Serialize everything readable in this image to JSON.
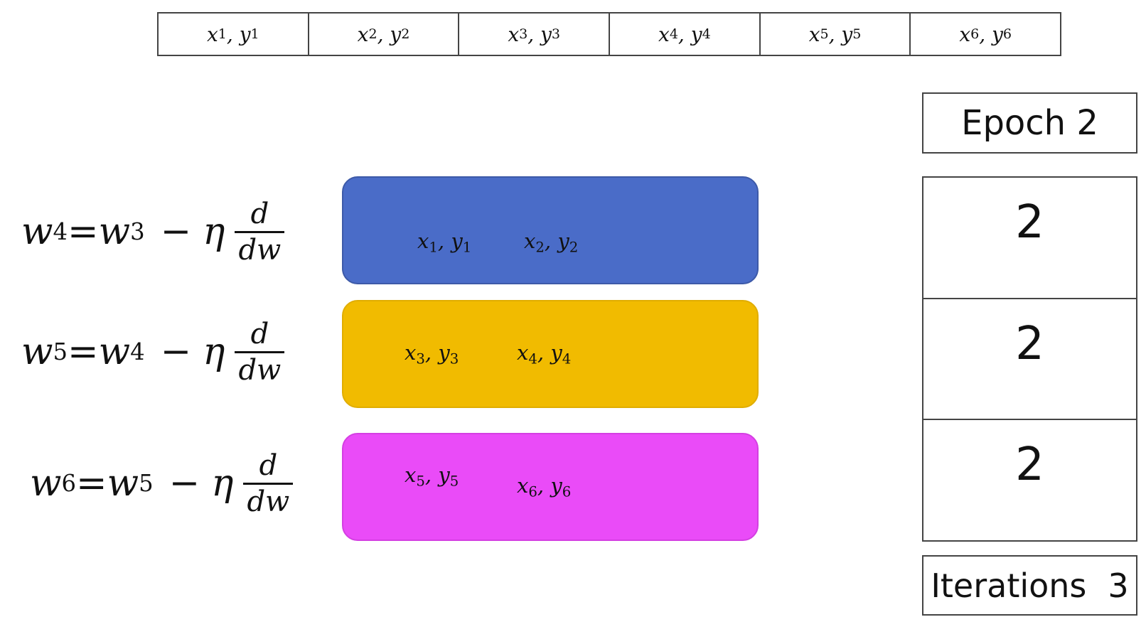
{
  "dataset": [
    {
      "x": "x",
      "y": "y",
      "i": "1"
    },
    {
      "x": "x",
      "y": "y",
      "i": "2"
    },
    {
      "x": "x",
      "y": "y",
      "i": "3"
    },
    {
      "x": "x",
      "y": "y",
      "i": "4"
    },
    {
      "x": "x",
      "y": "y",
      "i": "5"
    },
    {
      "x": "x",
      "y": "y",
      "i": "6"
    }
  ],
  "equations": [
    {
      "lhs_sup": "4",
      "rhs_sup": "3"
    },
    {
      "lhs_sup": "5",
      "rhs_sup": "4"
    },
    {
      "lhs_sup": "6",
      "rhs_sup": "5"
    }
  ],
  "equation_symbols": {
    "w": "w",
    "eq": "=",
    "minus": "−",
    "eta": "η",
    "d": "d",
    "dw": "dw"
  },
  "batches": [
    {
      "color": "#4a6cc8",
      "items": [
        "1",
        "2"
      ]
    },
    {
      "color": "#f1bb00",
      "items": [
        "3",
        "4"
      ]
    },
    {
      "color": "#ea4bf8",
      "items": [
        "5",
        "6"
      ]
    }
  ],
  "epoch_label": "Epoch 2",
  "batch_iterations": [
    "2",
    "2",
    "2"
  ],
  "iterations": {
    "label": "Iterations",
    "value": "3"
  }
}
